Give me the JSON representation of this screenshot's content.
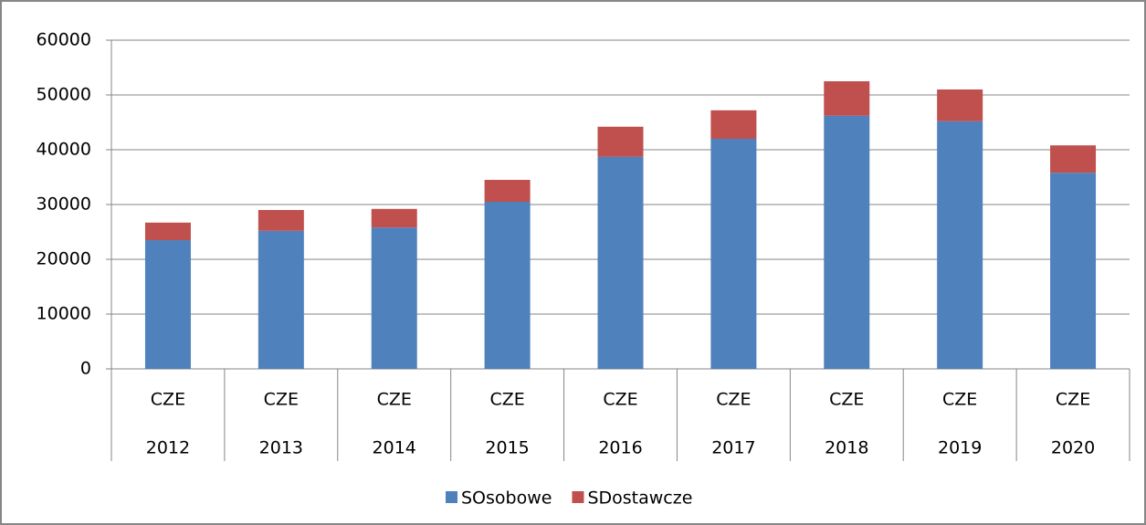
{
  "chart_data": {
    "type": "stacked_bar",
    "categories": [
      "2012",
      "2013",
      "2014",
      "2015",
      "2016",
      "2017",
      "2018",
      "2019",
      "2020"
    ],
    "category_groups": [
      "CZE",
      "CZE",
      "CZE",
      "CZE",
      "CZE",
      "CZE",
      "CZE",
      "CZE",
      "CZE"
    ],
    "series": [
      {
        "name": "SOsobowe",
        "color": "#4f81bd",
        "values": [
          23500,
          25200,
          25800,
          30500,
          38700,
          42000,
          46200,
          45200,
          35800
        ]
      },
      {
        "name": "SDostawcze",
        "color": "#c0504d",
        "values": [
          3200,
          3800,
          3400,
          4000,
          5500,
          5200,
          6300,
          5800,
          5000
        ]
      }
    ],
    "ylim": [
      0,
      60000
    ],
    "yticks": [
      0,
      10000,
      20000,
      30000,
      40000,
      50000,
      60000
    ],
    "grid": true,
    "legend": "bottom"
  }
}
